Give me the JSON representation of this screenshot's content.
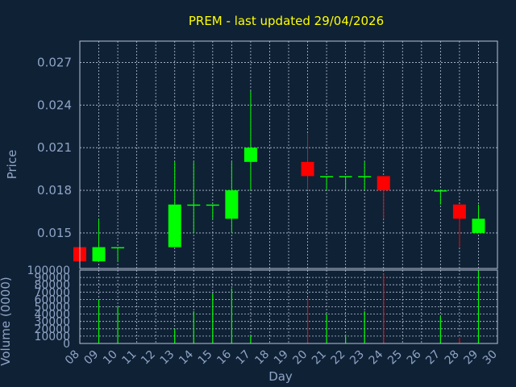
{
  "chart_data": {
    "title": "PREM - last updated 29/04/2026",
    "xlabel": "Day",
    "colors": {
      "background": "#0f2135",
      "title": "#ffff00",
      "axis_text": "#8fa4c6",
      "grid": "#b8c4d6",
      "up": "#00ff00",
      "down": "#ff0000"
    },
    "price_panel": {
      "type": "candlestick",
      "ylabel": "Price",
      "ylim": [
        0.0125,
        0.0285
      ],
      "yticks": [
        0.015,
        0.018,
        0.021,
        0.024,
        0.027
      ],
      "ytick_labels": [
        "0.015",
        "0.018",
        "0.021",
        "0.024",
        "0.027"
      ],
      "candles": [
        {
          "day": 8,
          "open": 0.014,
          "high": 0.014,
          "low": 0.013,
          "close": 0.013
        },
        {
          "day": 9,
          "open": 0.013,
          "high": 0.016,
          "low": 0.013,
          "close": 0.014
        },
        {
          "day": 10,
          "open": 0.014,
          "high": 0.014,
          "low": 0.013,
          "close": 0.014
        },
        {
          "day": 13,
          "open": 0.014,
          "high": 0.02,
          "low": 0.014,
          "close": 0.017
        },
        {
          "day": 14,
          "open": 0.017,
          "high": 0.02,
          "low": 0.015,
          "close": 0.017
        },
        {
          "day": 15,
          "open": 0.017,
          "high": 0.017,
          "low": 0.016,
          "close": 0.017
        },
        {
          "day": 16,
          "open": 0.016,
          "high": 0.02,
          "low": 0.015,
          "close": 0.018
        },
        {
          "day": 17,
          "open": 0.02,
          "high": 0.025,
          "low": 0.018,
          "close": 0.021
        },
        {
          "day": 20,
          "open": 0.02,
          "high": 0.022,
          "low": 0.018,
          "close": 0.019
        },
        {
          "day": 21,
          "open": 0.019,
          "high": 0.019,
          "low": 0.018,
          "close": 0.019
        },
        {
          "day": 22,
          "open": 0.019,
          "high": 0.019,
          "low": 0.018,
          "close": 0.019
        },
        {
          "day": 23,
          "open": 0.019,
          "high": 0.02,
          "low": 0.018,
          "close": 0.019
        },
        {
          "day": 24,
          "open": 0.019,
          "high": 0.019,
          "low": 0.016,
          "close": 0.018
        },
        {
          "day": 27,
          "open": 0.018,
          "high": 0.018,
          "low": 0.017,
          "close": 0.018
        },
        {
          "day": 28,
          "open": 0.017,
          "high": 0.017,
          "low": 0.014,
          "close": 0.016
        },
        {
          "day": 29,
          "open": 0.015,
          "high": 0.017,
          "low": 0.015,
          "close": 0.016
        }
      ]
    },
    "volume_panel": {
      "type": "bar",
      "ylabel": "Volume (0000)",
      "ylim": [
        0,
        100000
      ],
      "yticks": [
        0,
        10000,
        20000,
        30000,
        40000,
        50000,
        60000,
        70000,
        80000,
        90000,
        100000
      ],
      "ytick_labels": [
        "0",
        "10000",
        "20000",
        "30000",
        "40000",
        "50000",
        "60000",
        "70000",
        "80000",
        "90000",
        "100000"
      ],
      "bars": [
        {
          "day": 9,
          "value": 60000,
          "dir": "up"
        },
        {
          "day": 10,
          "value": 50000,
          "dir": "up"
        },
        {
          "day": 13,
          "value": 20000,
          "dir": "up"
        },
        {
          "day": 14,
          "value": 44000,
          "dir": "up"
        },
        {
          "day": 15,
          "value": 68000,
          "dir": "up"
        },
        {
          "day": 16,
          "value": 75000,
          "dir": "up"
        },
        {
          "day": 17,
          "value": 10000,
          "dir": "up"
        },
        {
          "day": 20,
          "value": 62000,
          "dir": "down"
        },
        {
          "day": 21,
          "value": 40000,
          "dir": "up"
        },
        {
          "day": 22,
          "value": 12000,
          "dir": "up"
        },
        {
          "day": 23,
          "value": 44000,
          "dir": "up"
        },
        {
          "day": 24,
          "value": 95000,
          "dir": "down"
        },
        {
          "day": 27,
          "value": 37000,
          "dir": "up"
        },
        {
          "day": 28,
          "value": 8000,
          "dir": "down"
        },
        {
          "day": 29,
          "value": 100000,
          "dir": "up"
        }
      ]
    },
    "x_axis": {
      "xlim": [
        8,
        30
      ],
      "ticks": [
        8,
        9,
        10,
        11,
        12,
        13,
        14,
        15,
        16,
        17,
        18,
        19,
        20,
        21,
        22,
        23,
        24,
        25,
        26,
        27,
        28,
        29,
        30
      ],
      "tick_labels": [
        "08",
        "09",
        "10",
        "11",
        "12",
        "13",
        "14",
        "15",
        "16",
        "17",
        "18",
        "19",
        "20",
        "21",
        "22",
        "23",
        "24",
        "25",
        "26",
        "27",
        "28",
        "29",
        "30"
      ],
      "grid": true
    }
  }
}
